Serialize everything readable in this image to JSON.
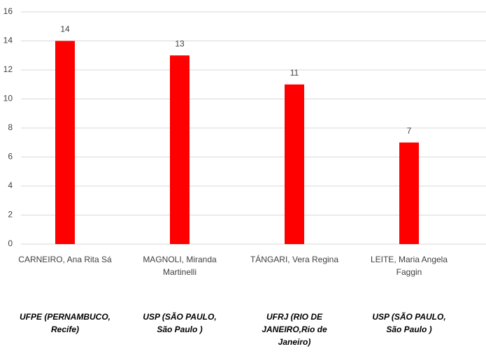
{
  "chart_data": {
    "type": "bar",
    "categories": [
      "CARNEIRO, Ana Rita Sá",
      "MAGNOLI, Miranda Martinelli",
      "TÁNGARI, Vera Regina",
      "LEITE, Maria Angela Faggin"
    ],
    "institutions": [
      "UFPE (PERNAMBUCO, Recife)",
      "USP (SÃO PAULO, São Paulo )",
      "UFRJ (RIO DE JANEIRO,Rio de Janeiro)",
      "USP (SÃO PAULO, São Paulo )"
    ],
    "values": [
      14,
      13,
      11,
      7
    ],
    "color": "#ff0000",
    "ylim": [
      0,
      16
    ],
    "yticks": [
      0,
      2,
      4,
      6,
      8,
      10,
      12,
      14,
      16
    ],
    "grid": true
  }
}
